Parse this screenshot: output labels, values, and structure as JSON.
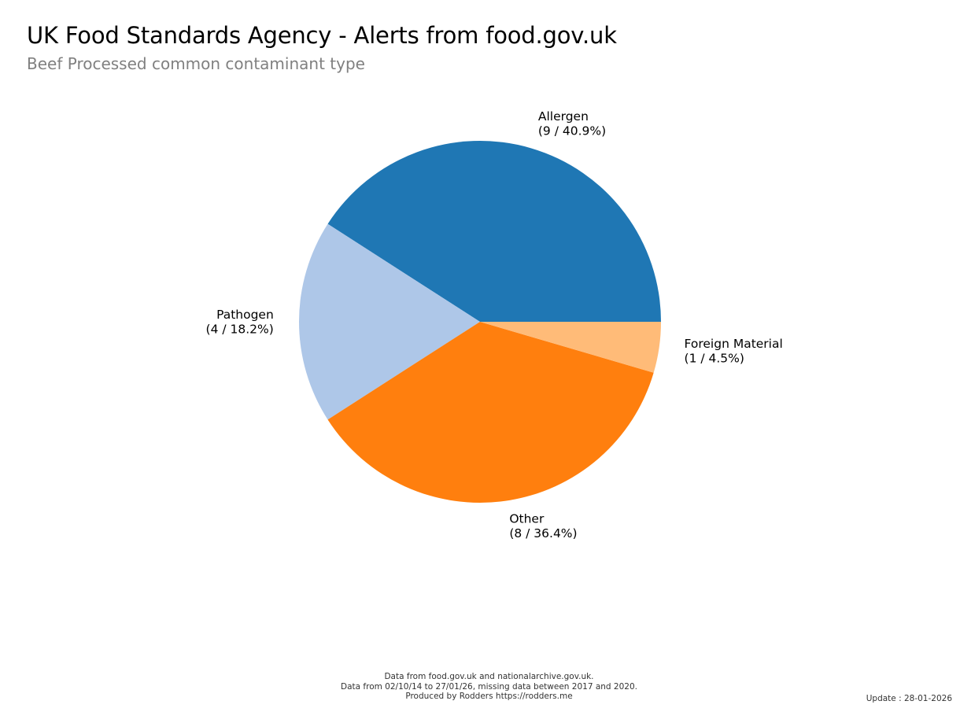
{
  "header": {
    "title": "UK Food Standards Agency - Alerts from food.gov.uk",
    "subtitle": "Beef Processed common contaminant type"
  },
  "chart_data": {
    "type": "pie",
    "title": "UK Food Standards Agency - Alerts from food.gov.uk",
    "subtitle": "Beef Processed common contaminant type",
    "start_angle_deg": 0,
    "direction": "counterclockwise",
    "slices": [
      {
        "label": "Allergen",
        "value": 9,
        "percent": 40.9,
        "display": "(9 / 40.9%)",
        "color": "#1f77b4"
      },
      {
        "label": "Pathogen",
        "value": 4,
        "percent": 18.2,
        "display": "(4 / 18.2%)",
        "color": "#aec7e8"
      },
      {
        "label": "Other",
        "value": 8,
        "percent": 36.4,
        "display": "(8 / 36.4%)",
        "color": "#ff7f0e"
      },
      {
        "label": "Foreign Material",
        "value": 1,
        "percent": 4.5,
        "display": "(1 / 4.5%)",
        "color": "#ffbb78"
      }
    ]
  },
  "footer": {
    "line1": "Data from food.gov.uk and nationalarchive.gov.uk.",
    "line2": "Data from 02/10/14 to 27/01/26, missing data between 2017 and 2020.",
    "line3": "Produced by Rodders https://rodders.me",
    "update": "Update : 28-01-2026"
  }
}
